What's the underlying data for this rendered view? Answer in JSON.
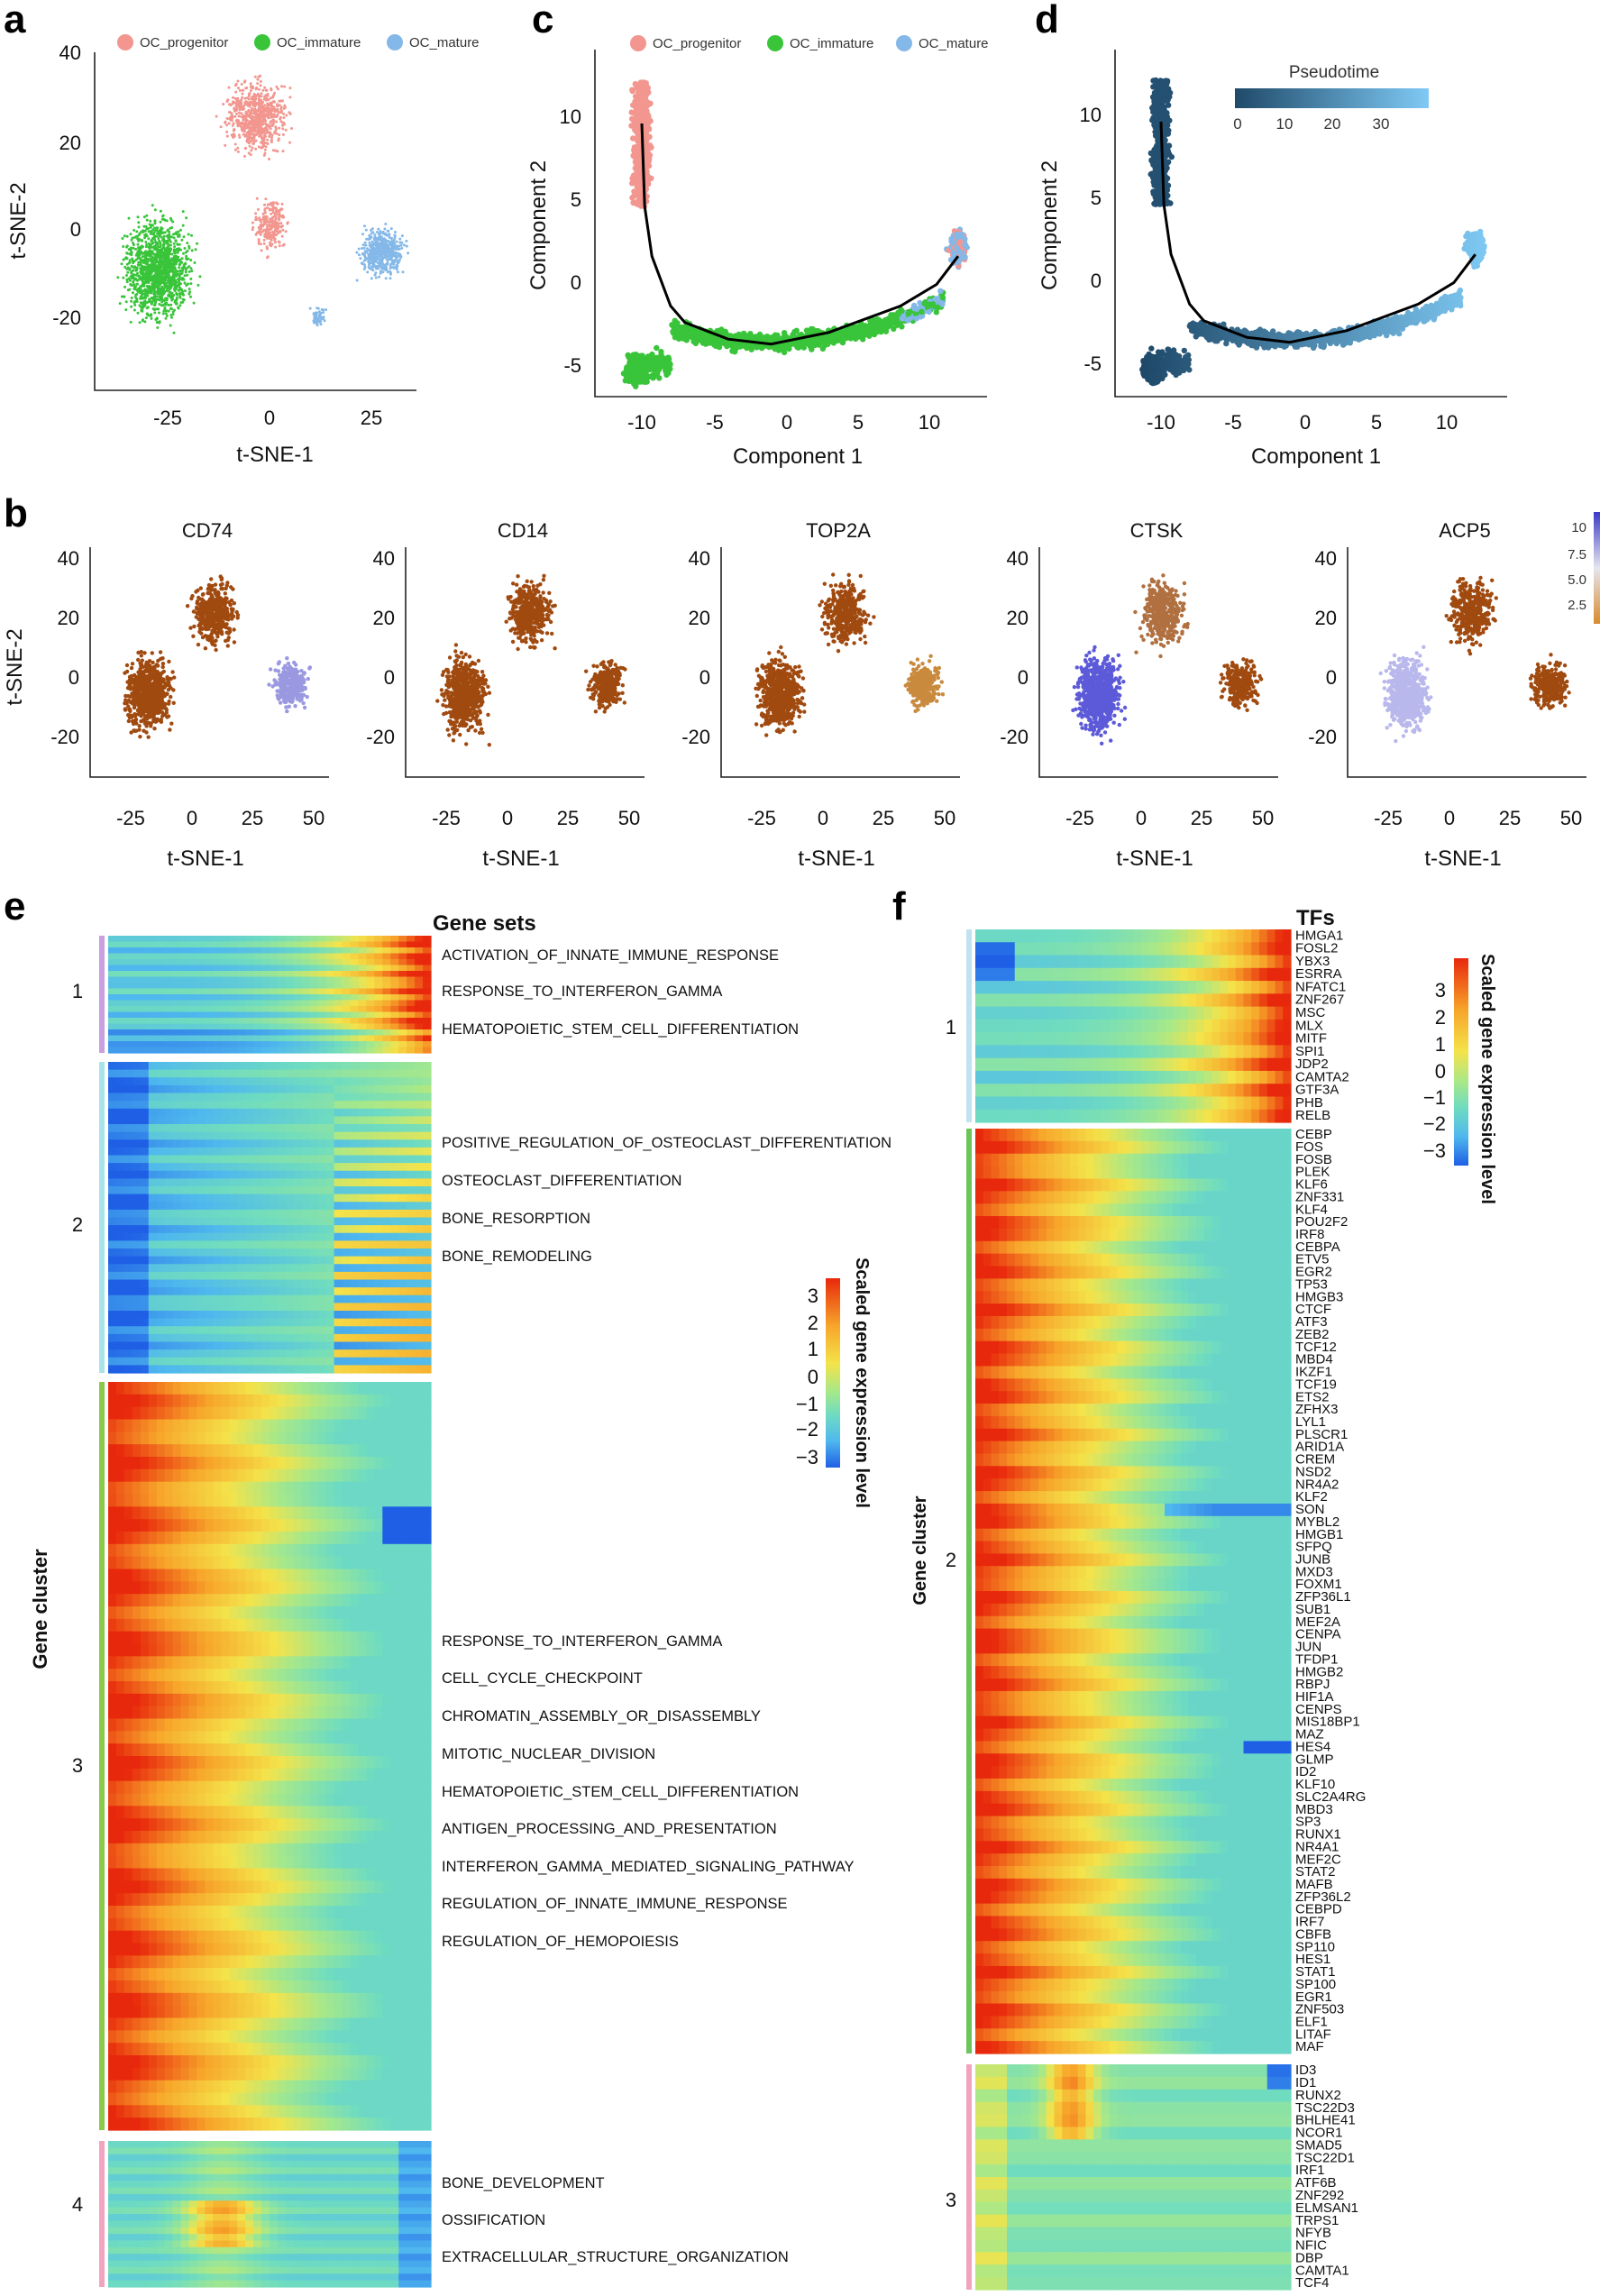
{
  "panel_labels": {
    "a": "a",
    "b": "b",
    "c": "c",
    "d": "d",
    "e": "e",
    "f": "f"
  },
  "legend": [
    {
      "name": "OC_progenitor",
      "color": "#f2968f"
    },
    {
      "name": "OC_immature",
      "color": "#39c43a"
    },
    {
      "name": "OC_mature",
      "color": "#84b8e8"
    }
  ],
  "panel_a": {
    "xlabel": "t-SNE-1",
    "ylabel": "t-SNE-2",
    "xticks": [
      "-25",
      "0",
      "25"
    ],
    "yticks": [
      "40",
      "20",
      "0",
      "-20"
    ]
  },
  "panel_c": {
    "xlabel": "Component 1",
    "ylabel": "Component 2",
    "xticks": [
      "-10",
      "-5",
      "0",
      "5",
      "10"
    ],
    "yticks": [
      "10",
      "5",
      "0",
      "-5"
    ]
  },
  "panel_d": {
    "xlabel": "Component 1",
    "ylabel": "Component 2",
    "xticks": [
      "-10",
      "-5",
      "0",
      "5",
      "10"
    ],
    "yticks": [
      "10",
      "5",
      "0",
      "-5"
    ],
    "colorbar_title": "Pseudotime",
    "colorbar_ticks": [
      "0",
      "10",
      "20",
      "30"
    ]
  },
  "panel_b": {
    "genes": [
      "CD74",
      "CD14",
      "TOP2A",
      "CTSK",
      "ACP5"
    ],
    "xlabel": "t-SNE-1",
    "ylabel": "t-SNE-2",
    "xticks": [
      "-25",
      "0",
      "25",
      "50"
    ],
    "yticks": [
      "40",
      "20",
      "0",
      "-20"
    ],
    "last_xticks": [
      "-25",
      "0",
      "25",
      "50"
    ],
    "colorbar_ticks": [
      "10",
      "7.5",
      "5.0",
      "2.5"
    ]
  },
  "panel_e": {
    "y_title": "Gene cluster",
    "header": "Gene sets",
    "clusters": [
      "1",
      "2",
      "3",
      "4"
    ],
    "gene_sets": [
      "ACTIVATION_OF_INNATE_IMMUNE_RESPONSE",
      "RESPONSE_TO_INTERFERON_GAMMA",
      "HEMATOPOIETIC_STEM_CELL_DIFFERENTIATION",
      "POSITIVE_REGULATION_OF_OSTEOCLAST_DIFFERENTIATION",
      "OSTEOCLAST_DIFFERENTIATION",
      "BONE_RESORPTION",
      "BONE_REMODELING",
      "RESPONSE_TO_INTERFERON_GAMMA",
      "CELL_CYCLE_CHECKPOINT",
      "CHROMATIN_ASSEMBLY_OR_DISASSEMBLY",
      "MITOTIC_NUCLEAR_DIVISION",
      "HEMATOPOIETIC_STEM_CELL_DIFFERENTIATION",
      "ANTIGEN_PROCESSING_AND_PRESENTATION",
      "INTERFERON_GAMMA_MEDIATED_SIGNALING_PATHWAY",
      "REGULATION_OF_INNATE_IMMUNE_RESPONSE",
      "REGULATION_OF_HEMOPOIESIS",
      "BONE_DEVELOPMENT",
      "OSSIFICATION",
      "EXTRACELLULAR_STRUCTURE_ORGANIZATION"
    ],
    "colorbar_title": "Scaled gene expression level",
    "colorbar_ticks": [
      "3",
      "2",
      "1",
      "0",
      "−1",
      "−2",
      "−3"
    ]
  },
  "panel_f": {
    "y_title": "Gene cluster",
    "header": "TFs",
    "clusters": [
      "1",
      "2",
      "3"
    ],
    "tfs_1": [
      "HMGA1",
      "FOSL2",
      "YBX3",
      "ESRRA",
      "NFATC1",
      "ZNF267",
      "MSC",
      "MLX",
      "MITF",
      "SPI1",
      "JDP2",
      "CAMTA2",
      "GTF3A",
      "PHB",
      "RELB"
    ],
    "tfs_2": [
      "CEBP",
      "FOS",
      "FOSB",
      "PLEK",
      "KLF6",
      "ZNF331",
      "KLF4",
      "POU2F2",
      "IRF8",
      "CEBPA",
      "ETV5",
      "EGR2",
      "TP53",
      "HMGB3",
      "CTCF",
      "ATF3",
      "ZEB2",
      "TCF12",
      "MBD4",
      "IKZF1",
      "TCF19",
      "ETS2",
      "ZFHX3",
      "LYL1",
      "PLSCR1",
      "ARID1A",
      "CREM",
      "NSD2",
      "NR4A2",
      "KLF2",
      "SON",
      "MYBL2",
      "HMGB1",
      "SFPQ",
      "JUNB",
      "MXD3",
      "FOXM1",
      "ZFP36L1",
      "SUB1",
      "MEF2A",
      "CENPA",
      "JUN",
      "TFDP1",
      "HMGB2",
      "RBPJ",
      "HIF1A",
      "CENPS",
      "MIS18BP1",
      "MAZ",
      "HES4",
      "GLMP",
      "ID2",
      "KLF10",
      "SLC2A4RG",
      "MBD3",
      "SP3",
      "RUNX1",
      "NR4A1",
      "MEF2C",
      "STAT2",
      "MAFB",
      "ZFP36L2",
      "CEBPD",
      "IRF7",
      "CBFB",
      "SP110",
      "HES1",
      "STAT1",
      "SP100",
      "EGR1",
      "ZNF503",
      "ELF1",
      "LITAF",
      "MAF"
    ],
    "tfs_3": [
      "ID3",
      "ID1",
      "RUNX2",
      "TSC22D3",
      "BHLHE41",
      "NCOR1",
      "SMAD5",
      "TSC22D1",
      "IRF1",
      "ATF6B",
      "ZNF292",
      "ELMSAN1",
      "TRPS1",
      "NFYB",
      "NFIC",
      "DBP",
      "CAMTA1",
      "TCF4"
    ],
    "colorbar_title": "Scaled gene expression level",
    "colorbar_ticks": [
      "3",
      "2",
      "1",
      "0",
      "−1",
      "−2",
      "−3"
    ]
  },
  "colors": {
    "progenitor": "#f2968f",
    "immature": "#39c43a",
    "mature": "#84b8e8",
    "high": "#a04a10",
    "low": "#3a3ac8",
    "heat_hi": "#e8280c",
    "heat_mid": "#f4e34a",
    "heat_zero": "#6fdcc0",
    "heat_lo": "#1e5fe6",
    "pseudo_lo": "#1f4a6a",
    "pseudo_hi": "#7fcaf5"
  },
  "chart_data": [
    {
      "type": "scatter",
      "panel": "a",
      "title": "",
      "xlabel": "t-SNE-1",
      "ylabel": "t-SNE-2",
      "xlim": [
        -40,
        45
      ],
      "ylim": [
        -35,
        42
      ],
      "series": [
        {
          "name": "OC_progenitor",
          "values": []
        },
        {
          "name": "OC_immature",
          "cluster_center": [
            -22,
            -6
          ]
        },
        {
          "name": "OC_mature",
          "cluster_center": [
            27,
            -3
          ]
        }
      ]
    },
    {
      "type": "scatter",
      "panel": "c",
      "xlabel": "Component 1",
      "ylabel": "Component 2",
      "xlim": [
        -12,
        14
      ],
      "ylim": [
        -6,
        14
      ],
      "trajectory": [
        [
          -10,
          10
        ],
        [
          -9.8,
          5
        ],
        [
          -9.3,
          2
        ],
        [
          -8,
          -1
        ],
        [
          -7,
          -2
        ],
        [
          -4,
          -3
        ],
        [
          -1,
          -3.3
        ],
        [
          3,
          -2.6
        ],
        [
          8,
          -1
        ],
        [
          10.5,
          0.3
        ],
        [
          12,
          2
        ]
      ]
    },
    {
      "type": "scatter",
      "panel": "d",
      "xlabel": "Component 1",
      "ylabel": "Component 2",
      "colorbar": "Pseudotime",
      "range": [
        0,
        35
      ]
    },
    {
      "type": "heatmap",
      "panel": "e",
      "ylabel": "Gene cluster",
      "clusters": [
        "1",
        "2",
        "3",
        "4"
      ],
      "scale": [
        -3,
        3
      ]
    },
    {
      "type": "heatmap",
      "panel": "f",
      "ylabel": "Gene cluster",
      "clusters": [
        "1",
        "2",
        "3"
      ],
      "scale": [
        -3,
        3
      ]
    }
  ]
}
